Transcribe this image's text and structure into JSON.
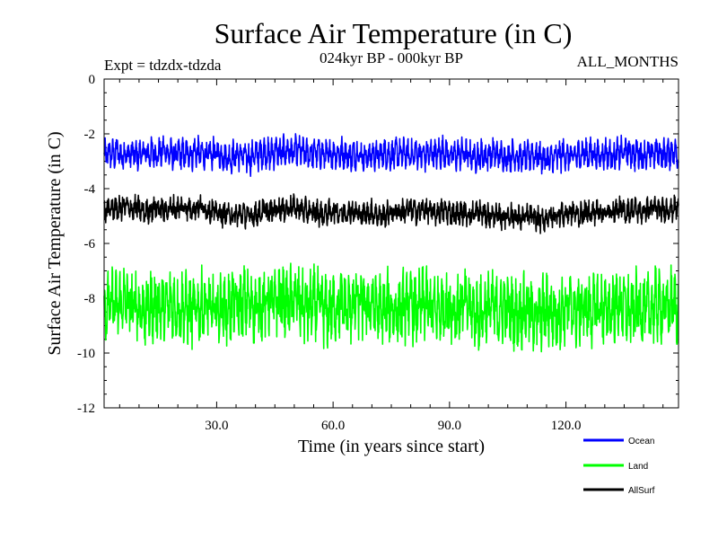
{
  "chart_data": {
    "type": "line",
    "title": "Surface Air Temperature (in C)",
    "subtitle": "024kyr BP - 000kyr BP",
    "experiment_label": "Expt = tdzdx-tdzda",
    "period_label": "ALL_MONTHS",
    "xlabel": "Time (in years since start)",
    "ylabel": "Surface Air Temperature (in C)",
    "xlim": [
      1,
      149
    ],
    "ylim": [
      -12,
      0
    ],
    "x_ticks": [
      30,
      60,
      90,
      120
    ],
    "x_tick_labels": [
      "30.0",
      "60.0",
      "90.0",
      "120.0"
    ],
    "y_ticks": [
      0,
      -2,
      -4,
      -6,
      -8,
      -10,
      -12
    ],
    "y_tick_labels": [
      "0",
      "-2",
      "-4",
      "-6",
      "-8",
      "-10",
      "-12"
    ],
    "samples_per_year": 12,
    "series": [
      {
        "name": "Ocean",
        "color": "#0000ff",
        "mean": -2.75,
        "seasonal_amplitude": 0.3,
        "noise_amplitude": 0.22,
        "annual_means": [
          -2.8,
          -2.7,
          -2.75,
          -2.65,
          -2.8,
          -2.7,
          -2.75,
          -2.7,
          -2.8,
          -2.75,
          -2.7,
          -2.75,
          -2.7,
          -2.75,
          -2.7,
          -2.6,
          -2.7,
          -2.75,
          -2.8,
          -2.7,
          -2.75,
          -2.7,
          -2.75,
          -2.65,
          -2.7,
          -2.75,
          -2.8,
          -2.75,
          -2.7,
          -2.75,
          -2.8,
          -2.85,
          -2.9,
          -2.8,
          -2.75,
          -2.8,
          -2.85,
          -2.9,
          -2.8,
          -2.75,
          -2.7,
          -2.65,
          -2.75,
          -2.7,
          -2.6,
          -2.7,
          -2.65,
          -2.6,
          -2.7,
          -2.6,
          -2.65,
          -2.7,
          -2.75,
          -2.7,
          -2.65,
          -2.7,
          -2.75,
          -2.8,
          -2.75,
          -2.7,
          -2.75,
          -2.7,
          -2.75,
          -2.8,
          -2.75,
          -2.7,
          -2.8,
          -2.85,
          -2.8,
          -2.75,
          -2.8,
          -2.75,
          -2.7,
          -2.75,
          -2.8,
          -2.7,
          -2.75,
          -2.7,
          -2.75,
          -2.8,
          -2.7,
          -2.75,
          -2.8,
          -2.75,
          -2.7,
          -2.75,
          -2.7,
          -2.65,
          -2.7,
          -2.75,
          -2.8,
          -2.75,
          -2.7,
          -2.75,
          -2.8,
          -2.85,
          -2.8,
          -2.75,
          -2.8,
          -2.75,
          -2.7,
          -2.75,
          -2.8,
          -2.85,
          -2.8,
          -2.75,
          -2.8,
          -2.9,
          -2.85,
          -2.8,
          -2.75,
          -2.8,
          -2.85,
          -2.9,
          -2.95,
          -2.9,
          -2.85,
          -2.8,
          -2.75,
          -2.8,
          -2.85,
          -2.8,
          -2.75,
          -2.7,
          -2.75,
          -2.7,
          -2.75,
          -2.8,
          -2.75,
          -2.7,
          -2.75,
          -2.8,
          -2.75,
          -2.7,
          -2.65,
          -2.7,
          -2.75,
          -2.7,
          -2.75,
          -2.8,
          -2.75,
          -2.7,
          -2.65,
          -2.7,
          -2.75,
          -2.7,
          -2.65,
          -2.7,
          -2.75
        ]
      },
      {
        "name": "Land",
        "color": "#00ff00",
        "mean": -8.3,
        "seasonal_amplitude": 0.6,
        "noise_amplitude": 0.55,
        "annual_means": [
          -8.4,
          -8.3,
          -8.2,
          -8.3,
          -8.2,
          -8.1,
          -8.2,
          -8.3,
          -8.2,
          -8.4,
          -8.5,
          -8.4,
          -8.3,
          -8.2,
          -8.3,
          -8.4,
          -8.3,
          -8.2,
          -8.3,
          -8.4,
          -8.3,
          -8.4,
          -8.5,
          -8.4,
          -8.3,
          -8.2,
          -8.3,
          -8.4,
          -8.5,
          -8.4,
          -8.3,
          -8.4,
          -8.3,
          -8.2,
          -8.3,
          -8.2,
          -8.1,
          -8.2,
          -8.3,
          -8.4,
          -8.3,
          -8.2,
          -8.1,
          -8.2,
          -8.1,
          -8.0,
          -8.1,
          -8.2,
          -8.1,
          -8.0,
          -8.2,
          -8.3,
          -8.4,
          -8.3,
          -8.2,
          -8.3,
          -8.4,
          -8.5,
          -8.4,
          -8.3,
          -8.2,
          -8.3,
          -8.4,
          -8.3,
          -8.2,
          -8.1,
          -8.2,
          -8.3,
          -8.2,
          -8.3,
          -8.4,
          -8.5,
          -8.4,
          -8.3,
          -8.4,
          -8.5,
          -8.4,
          -8.3,
          -8.2,
          -8.3,
          -8.4,
          -8.3,
          -8.2,
          -8.3,
          -8.4,
          -8.5,
          -8.4,
          -8.3,
          -8.2,
          -8.3,
          -8.4,
          -8.3,
          -8.2,
          -8.3,
          -8.4,
          -8.5,
          -8.6,
          -8.5,
          -8.4,
          -8.3,
          -8.4,
          -8.5,
          -8.4,
          -8.3,
          -8.4,
          -8.5,
          -8.6,
          -8.5,
          -8.4,
          -8.5,
          -8.6,
          -8.7,
          -8.6,
          -8.5,
          -8.4,
          -8.5,
          -8.6,
          -8.5,
          -8.4,
          -8.3,
          -8.4,
          -8.5,
          -8.4,
          -8.3,
          -8.4,
          -8.5,
          -8.4,
          -8.3,
          -8.4,
          -8.5,
          -8.4,
          -8.3,
          -8.2,
          -8.3,
          -8.4,
          -8.5,
          -8.4,
          -8.3,
          -8.4,
          -8.5,
          -8.4,
          -8.3,
          -8.2,
          -8.3,
          -8.4,
          -8.3,
          -8.2,
          -8.3
        ]
      },
      {
        "name": "AllSurf",
        "color": "#000000",
        "mean": -4.8,
        "seasonal_amplitude": 0.2,
        "noise_amplitude": 0.2,
        "annual_means": [
          -4.8,
          -4.75,
          -4.7,
          -4.75,
          -4.7,
          -4.65,
          -4.7,
          -4.75,
          -4.7,
          -4.8,
          -4.85,
          -4.8,
          -4.75,
          -4.7,
          -4.75,
          -4.8,
          -4.75,
          -4.7,
          -4.75,
          -4.7,
          -4.65,
          -4.7,
          -4.75,
          -4.7,
          -4.65,
          -4.7,
          -4.75,
          -4.8,
          -4.85,
          -4.9,
          -4.95,
          -4.9,
          -4.95,
          -5.0,
          -4.95,
          -4.9,
          -4.95,
          -5.0,
          -4.95,
          -4.9,
          -4.85,
          -4.8,
          -4.85,
          -4.8,
          -4.75,
          -4.7,
          -4.75,
          -4.7,
          -4.65,
          -4.7,
          -4.75,
          -4.8,
          -4.85,
          -4.9,
          -4.85,
          -4.9,
          -4.95,
          -4.9,
          -4.85,
          -4.8,
          -4.85,
          -4.9,
          -4.85,
          -4.8,
          -4.85,
          -4.9,
          -4.95,
          -4.9,
          -4.85,
          -4.9,
          -4.95,
          -5.0,
          -4.95,
          -4.9,
          -4.85,
          -4.8,
          -4.85,
          -4.8,
          -4.75,
          -4.8,
          -4.85,
          -4.8,
          -4.75,
          -4.8,
          -4.85,
          -4.9,
          -4.85,
          -4.8,
          -4.85,
          -4.9,
          -4.95,
          -4.9,
          -4.85,
          -4.9,
          -4.95,
          -4.9,
          -4.85,
          -4.9,
          -4.95,
          -5.0,
          -4.95,
          -5.0,
          -5.05,
          -5.0,
          -4.95,
          -5.0,
          -5.05,
          -5.1,
          -5.05,
          -5.0,
          -5.05,
          -5.1,
          -5.15,
          -5.1,
          -5.05,
          -5.0,
          -4.95,
          -4.9,
          -4.95,
          -4.9,
          -4.85,
          -4.9,
          -4.95,
          -4.9,
          -4.85,
          -4.9,
          -4.85,
          -4.8,
          -4.85,
          -4.9,
          -4.85,
          -4.8,
          -4.75,
          -4.8,
          -4.85,
          -4.8,
          -4.75,
          -4.8,
          -4.85,
          -4.8,
          -4.75,
          -4.7,
          -4.75,
          -4.8,
          -4.75,
          -4.7,
          -4.75,
          -4.7,
          -4.75
        ]
      }
    ]
  }
}
